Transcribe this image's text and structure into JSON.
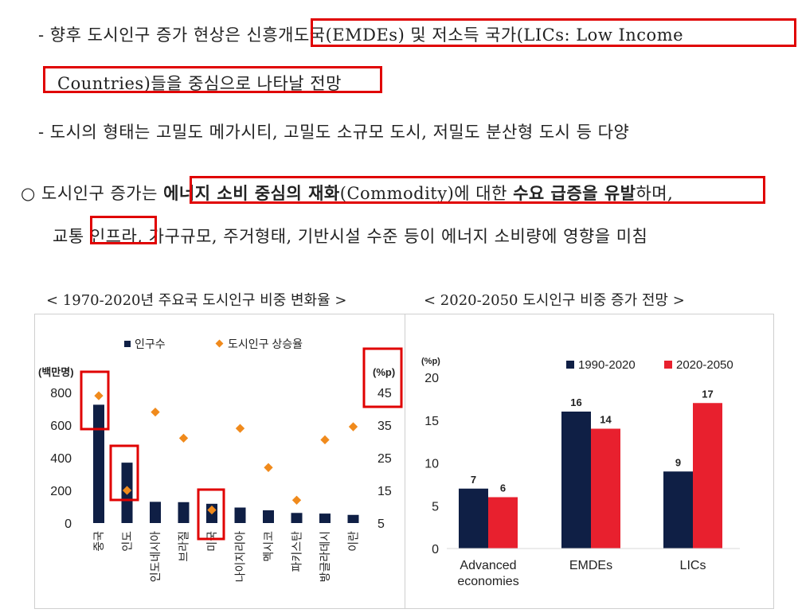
{
  "text": {
    "l1a": "- 향후 도시인구 증가 현상은 ",
    "l1b": "신흥개도국(EMDEs) 및 저소득 국가(LICs: Low Income",
    "l2": "Countries)들을 중심으로 나타날 전망",
    "l3": "- 도시의 형태는 고밀도 메가시티, 고밀도 소규모 도시, 저밀도 분산형 도시 등 다양",
    "l4_bullet": "○",
    "l4a": "도시인구 증가는 ",
    "l4b": "에너지 소비 중심의 재화",
    "l4c": "(Commodity)에 대한 ",
    "l4d": "수요 급증을 유발",
    "l4e": "하며,",
    "l5a": "교통 ",
    "l5b": "인프라",
    "l5c": ", 가구규모, 주거형태, 기반시설 수준 등이 에너지 소비량에 영향을 미침"
  },
  "captions": {
    "left": "< 1970-2020년 주요국 도시인구 비중 변화율 >",
    "right": "< 2020-2050 도시인구 비중 증가 전망 >"
  },
  "colors": {
    "navy": "#0f1f45",
    "orange": "#f08a1c",
    "red": "#e8202e",
    "highlight": "#e00000"
  },
  "chart_data": [
    {
      "type": "bar",
      "categories": [
        "중국",
        "인도",
        "인도네시아",
        "브라질",
        "미국",
        "나이지리아",
        "멕시코",
        "파키스탄",
        "방글라데시",
        "이란"
      ],
      "series": [
        {
          "name": "인구수",
          "axis": "left",
          "type": "bar",
          "values": [
            725,
            370,
            130,
            128,
            118,
            95,
            78,
            62,
            58,
            50
          ]
        },
        {
          "name": "도시인구 상승율",
          "axis": "right",
          "type": "scatter",
          "values": [
            44,
            15,
            39,
            31,
            9,
            34,
            22,
            12,
            30.5,
            34.5
          ]
        }
      ],
      "ylabel_left": "(백만명)",
      "ylabel_right": "(%p)",
      "ylim_left": [
        0,
        800
      ],
      "yticks_left": [
        0,
        200,
        400,
        600,
        800
      ],
      "ylim_right": [
        5,
        45
      ],
      "yticks_right": [
        5,
        15,
        25,
        35,
        45
      ],
      "legend": "top"
    },
    {
      "type": "bar",
      "categories": [
        "Advanced economies",
        "EMDEs",
        "LICs"
      ],
      "category_lines": [
        [
          "Advanced",
          "economies"
        ],
        [
          "EMDEs"
        ],
        [
          "LICs"
        ]
      ],
      "series": [
        {
          "name": "1990-2020",
          "values": [
            7,
            16,
            9
          ]
        },
        {
          "name": "2020-2050",
          "values": [
            6,
            14,
            17
          ]
        }
      ],
      "data_labels": [
        [
          "7",
          "16",
          "9"
        ],
        [
          "6",
          "14",
          "17"
        ]
      ],
      "ylabel": "(%p)",
      "ylim": [
        0,
        20
      ],
      "yticks": [
        0,
        5,
        10,
        15,
        20
      ],
      "legend": "top-right"
    }
  ]
}
